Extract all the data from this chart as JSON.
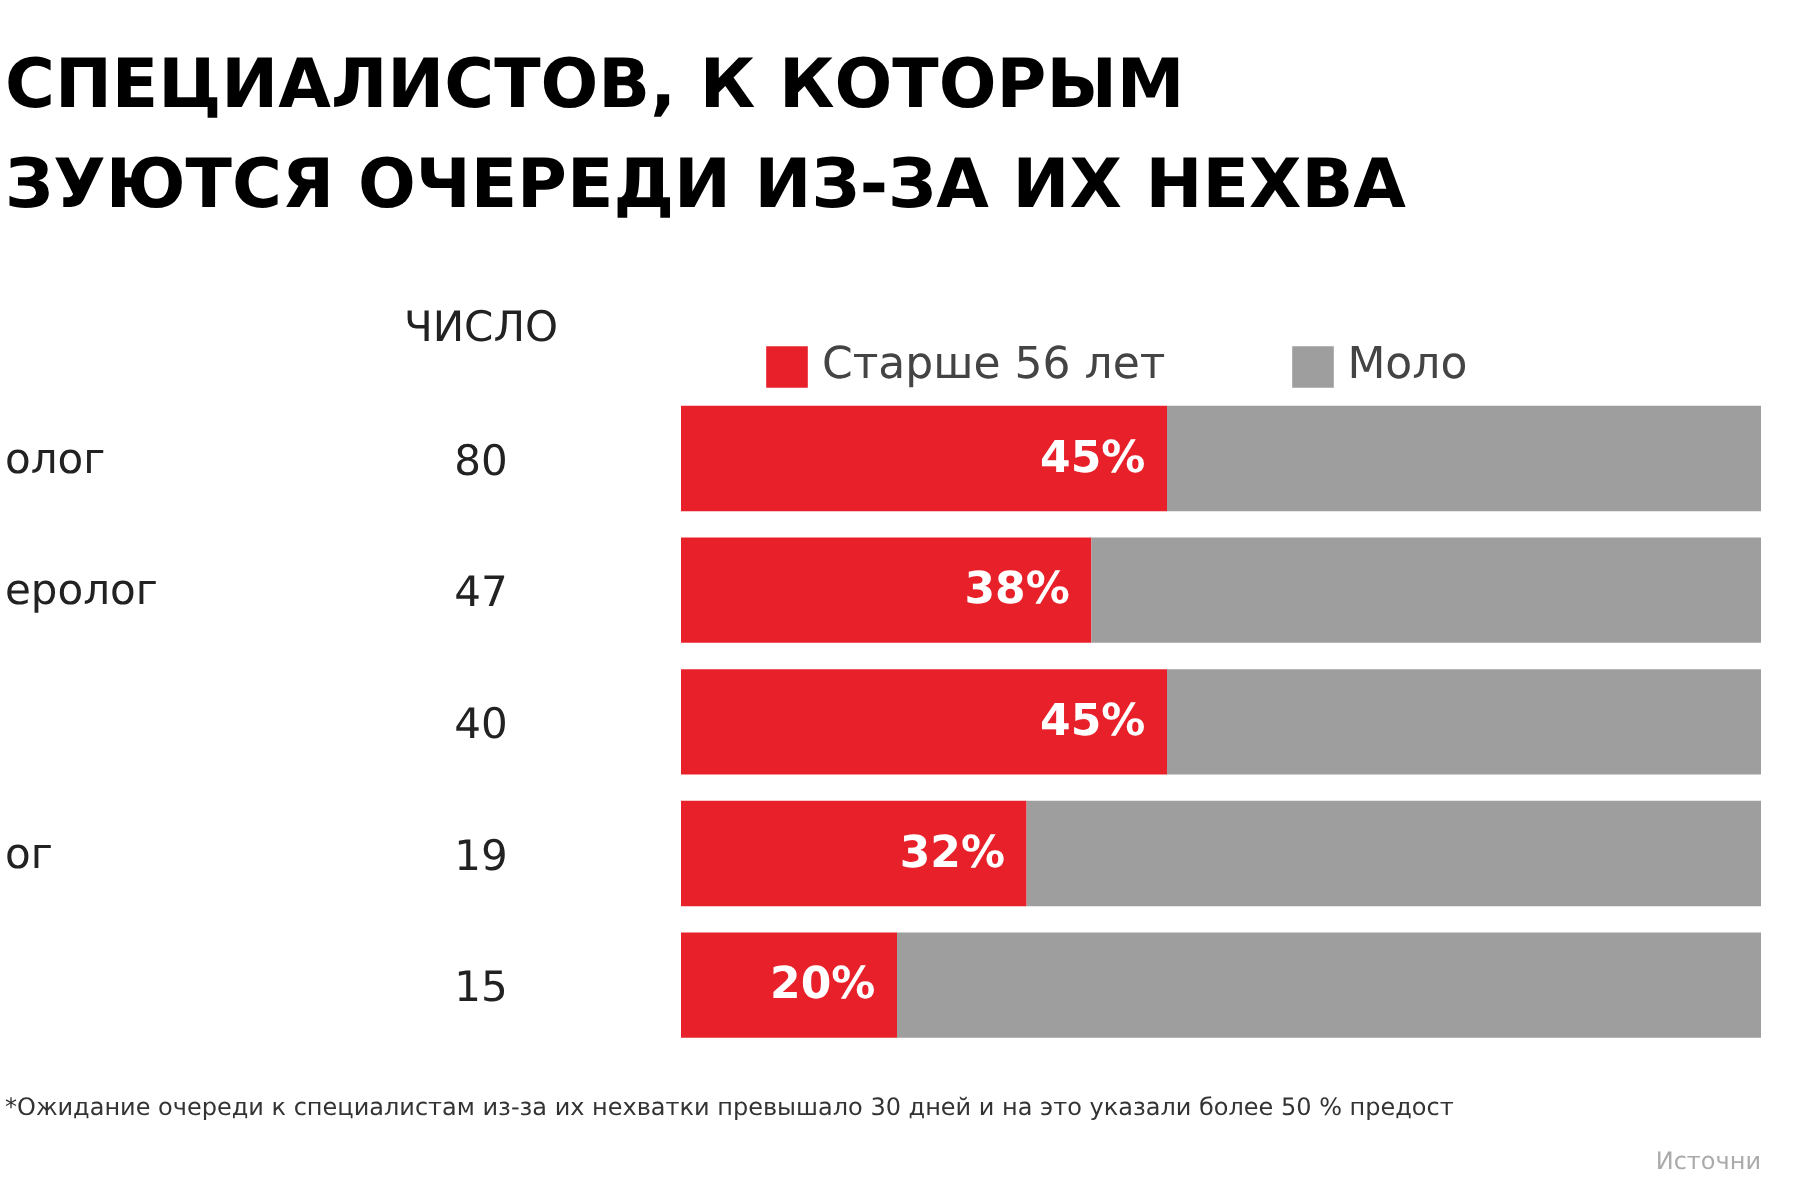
{
  "chart_data": {
    "type": "bar",
    "orientation": "horizontal",
    "stacked": true,
    "title": "СПЕЦИАЛИСТОВ, К КОТОРЫМ\nЗУЮТСЯ ОЧЕРЕДИ ИЗ-ЗА ИХ НЕХВА",
    "categories": [
      "олог",
      "еролог",
      null,
      "ог",
      null
    ],
    "series": [
      {
        "name": "Старше 56 лет",
        "color": "#e8202a",
        "values": [
          45,
          38,
          45,
          32,
          20
        ],
        "value_labels": [
          "45%",
          "38%",
          "45%",
          "32%",
          "20%"
        ]
      },
      {
        "name": "Моло",
        "color": "#9e9e9e",
        "values": [
          55,
          62,
          55,
          68,
          80
        ]
      }
    ],
    "annotations": [
      "ЧИСЛО",
      "80",
      "47",
      "40",
      "19",
      "15",
      "*Ожидание очереди к специалистам из-за их нехватки превышало 30 дней и на это указали более 50 % предост",
      "Источни"
    ],
    "legend": "top",
    "grid": false,
    "tick_labels": false
  }
}
